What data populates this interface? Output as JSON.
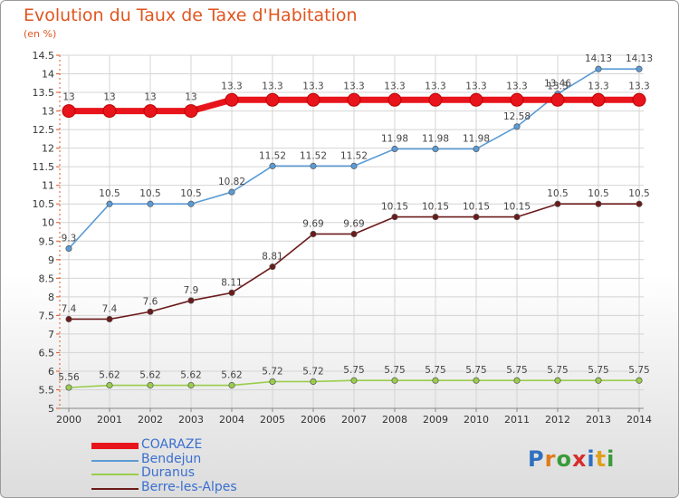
{
  "header": {
    "title": "Evolution du Taux de Taxe d'Habitation",
    "subtitle": "(en %)"
  },
  "logo": {
    "text": "Proxiti"
  },
  "chart_data": {
    "type": "line",
    "x": [
      2000,
      2001,
      2002,
      2003,
      2004,
      2005,
      2006,
      2007,
      2008,
      2009,
      2010,
      2011,
      2012,
      2013,
      2014
    ],
    "ylim": [
      5,
      14.5
    ],
    "yticks": [
      5,
      5.5,
      6,
      6.5,
      7,
      7.5,
      8,
      8.5,
      9,
      9.5,
      10,
      10.5,
      11,
      11.5,
      12,
      12.5,
      13,
      13.5,
      14,
      14.5
    ],
    "title": "Evolution du Taux de Taxe d'Habitation",
    "ylabel": "(en %)",
    "legend_position": "bottom-left",
    "series": [
      {
        "name": "COARAZE",
        "color": "#e8141b",
        "values": [
          13,
          13,
          13,
          13,
          13.3,
          13.3,
          13.3,
          13.3,
          13.3,
          13.3,
          13.3,
          13.3,
          13.3,
          13.3,
          13.3
        ]
      },
      {
        "name": "Bendejun",
        "color": "#5b9bd5",
        "values": [
          9.3,
          10.5,
          10.5,
          10.5,
          10.82,
          11.52,
          11.52,
          11.52,
          11.98,
          11.98,
          11.98,
          12.58,
          13.46,
          14.13,
          14.13
        ]
      },
      {
        "name": "Duranus",
        "color": "#9acd4c",
        "values": [
          5.56,
          5.62,
          5.62,
          5.62,
          5.62,
          5.72,
          5.72,
          5.75,
          5.75,
          5.75,
          5.75,
          5.75,
          5.75,
          5.75,
          5.75
        ]
      },
      {
        "name": "Berre-les-Alpes",
        "color": "#6b1a1a",
        "values": [
          7.4,
          7.4,
          7.6,
          7.9,
          8.11,
          8.81,
          9.69,
          9.69,
          10.15,
          10.15,
          10.15,
          10.15,
          10.5,
          10.5,
          10.5
        ]
      }
    ]
  }
}
